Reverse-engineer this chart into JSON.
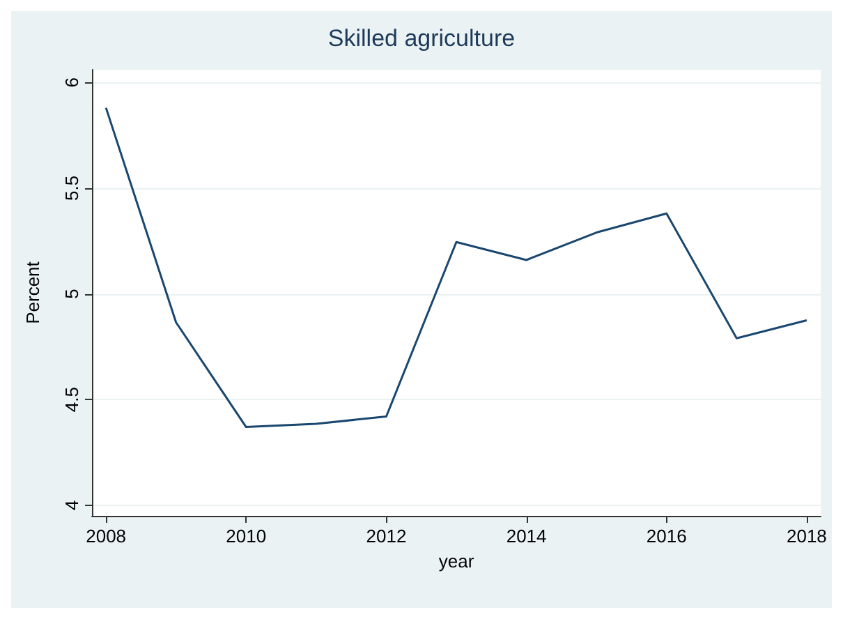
{
  "chart_data": {
    "type": "line",
    "title": "Skilled agriculture",
    "xlabel": "year",
    "ylabel": "Percent",
    "x": [
      2008,
      2009,
      2010,
      2011,
      2012,
      2013,
      2014,
      2015,
      2016,
      2017,
      2018
    ],
    "series": [
      {
        "color": "#1a476f",
        "values": [
          5.88,
          4.865,
          4.37,
          4.385,
          4.42,
          5.245,
          5.16,
          5.29,
          5.38,
          4.79,
          4.875
        ]
      }
    ],
    "xlim": [
      2007.8,
      2018.2
    ],
    "xticks": [
      2008,
      2010,
      2012,
      2014,
      2016,
      2018
    ],
    "ylim": [
      3.95,
      6.06
    ],
    "yticks": [
      4,
      4.5,
      5,
      5.5,
      6
    ],
    "grid": "y",
    "marker": "none",
    "line_style": "solid"
  }
}
